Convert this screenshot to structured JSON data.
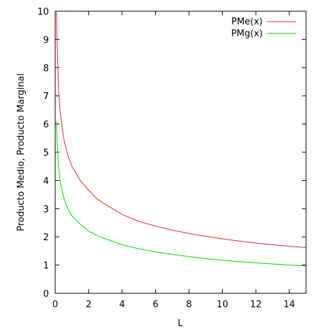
{
  "chart_data": {
    "type": "line",
    "title": "",
    "xlabel": "L",
    "ylabel": "Producto Medio, Producto Marginal",
    "xlim": [
      0,
      15
    ],
    "ylim": [
      0,
      10
    ],
    "x_ticks": [
      "0",
      "2",
      "4",
      "6",
      "8",
      "10",
      "12",
      "14"
    ],
    "y_ticks": [
      "0",
      "1",
      "2",
      "3",
      "4",
      "5",
      "6",
      "7",
      "8",
      "9",
      "10"
    ],
    "grid": false,
    "legend": "top-right",
    "series": [
      {
        "name": "PMe(x)",
        "color": "#e8282a",
        "x": [
          0.07,
          0.1,
          0.2,
          0.3,
          0.5,
          0.75,
          1,
          1.5,
          2,
          2.5,
          3,
          4,
          5,
          6,
          7,
          8,
          9,
          10,
          11,
          12,
          13,
          14,
          15
        ],
        "y": [
          10.0,
          9.2,
          7.2,
          6.4,
          5.5,
          4.9,
          4.5,
          4.0,
          3.65,
          3.35,
          3.15,
          2.8,
          2.55,
          2.38,
          2.24,
          2.12,
          2.02,
          1.93,
          1.85,
          1.78,
          1.72,
          1.67,
          1.62
        ]
      },
      {
        "name": "PMg(x)",
        "color": "#00e000",
        "x": [
          0.07,
          0.1,
          0.2,
          0.3,
          0.5,
          0.75,
          1,
          1.5,
          2,
          2.5,
          3,
          4,
          5,
          6,
          7,
          8,
          9,
          10,
          11,
          12,
          13,
          14,
          15
        ],
        "y": [
          6.1,
          5.6,
          4.5,
          3.95,
          3.4,
          3.0,
          2.75,
          2.45,
          2.2,
          2.05,
          1.93,
          1.72,
          1.58,
          1.47,
          1.38,
          1.3,
          1.23,
          1.17,
          1.12,
          1.08,
          1.04,
          1.0,
          0.97
        ]
      }
    ]
  }
}
